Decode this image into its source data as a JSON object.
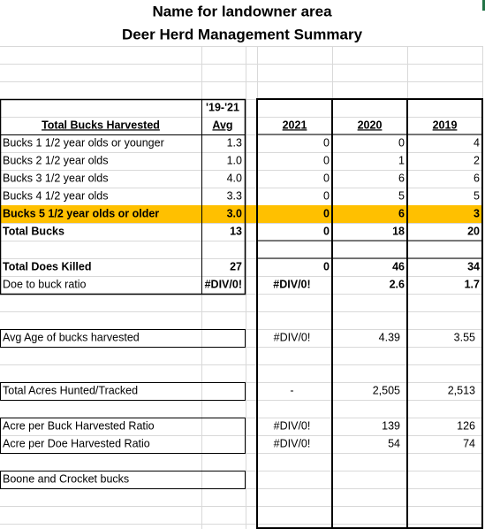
{
  "header": {
    "title": "Name for landowner area",
    "subtitle": "Deer Herd Management Summary"
  },
  "table": {
    "avg_header": [
      "'19-'21",
      "Avg"
    ],
    "label_header": "Total Bucks Harvested",
    "years": [
      "2021",
      "2020",
      "2019"
    ],
    "rows": [
      [
        "Bucks 1 1/2 year olds or younger",
        "1.3",
        "0",
        "0",
        "4"
      ],
      [
        "Bucks 2 1/2 year olds",
        "1.0",
        "0",
        "1",
        "2"
      ],
      [
        "Bucks 3 1/2 year olds",
        "4.0",
        "0",
        "6",
        "6"
      ],
      [
        "Bucks 4  1/2 year olds",
        "3.3",
        "0",
        "5",
        "5"
      ],
      [
        "Bucks 5 1/2 year olds or older",
        "3.0",
        "0",
        "6",
        "3"
      ],
      [
        "Total Bucks",
        "13",
        "0",
        "18",
        "20"
      ],
      [
        "Total Does Killed",
        "27",
        "0",
        "46",
        "34"
      ],
      [
        "Doe to buck ratio",
        "#DIV/0!",
        "#DIV/0!",
        "2.6",
        "1.7"
      ],
      [
        "Avg Age of bucks harvested",
        null,
        "#DIV/0!",
        "4.39",
        "3.55"
      ],
      [
        "Total Acres Hunted/Tracked",
        null,
        "-",
        "2,505",
        "2,513"
      ],
      [
        "Acre per Buck Harvested Ratio",
        null,
        "#DIV/0!",
        "139",
        "126"
      ],
      [
        "Acre per Doe Harvested Ratio",
        null,
        "#DIV/0!",
        "54",
        "74"
      ],
      [
        "Boone and Crocket bucks",
        null,
        null,
        null,
        null
      ]
    ]
  }
}
